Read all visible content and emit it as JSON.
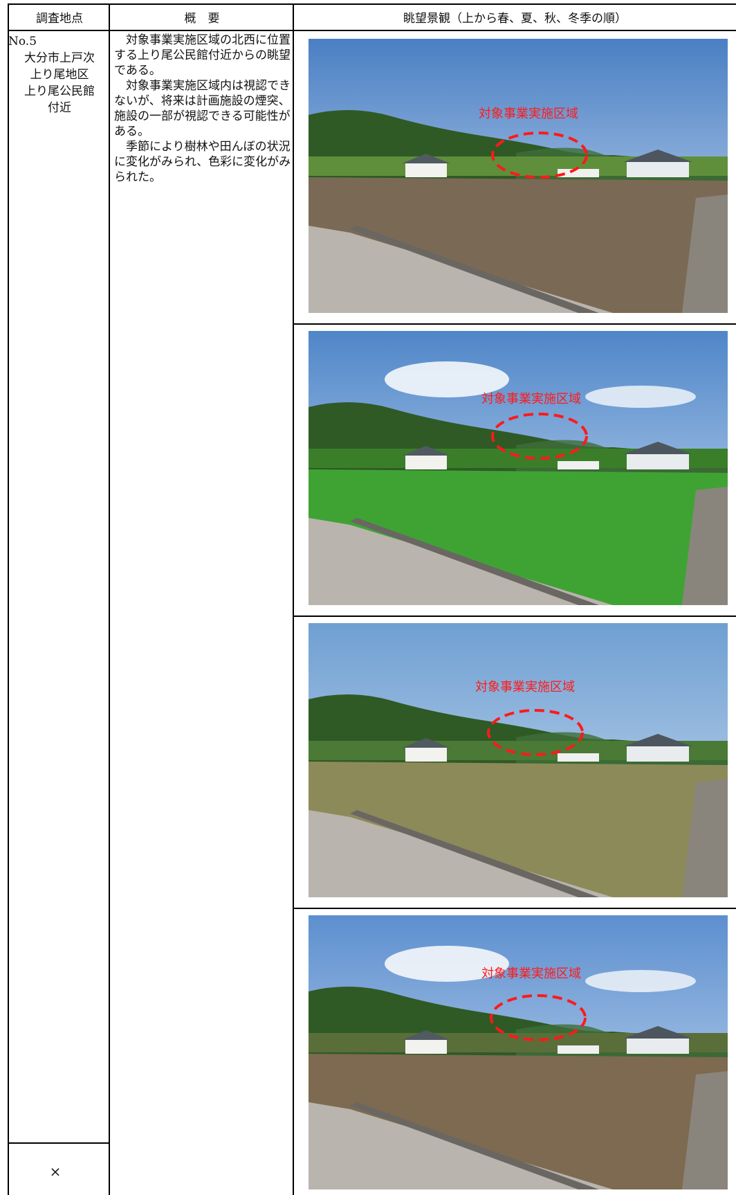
{
  "header": {
    "col1": "調査地点",
    "col2": "概　要",
    "col3": "眺望景観（上から春、夏、秋、冬季の順）"
  },
  "location": {
    "number": "No.5",
    "line1": "大分市上戸次",
    "line2": "上り尾地区",
    "line3": "上り尾公民館",
    "line4": "付近"
  },
  "summary": {
    "p1": "対象事業実施区域の北西に位置する上り尾公民館付近からの眺望である。",
    "p2": "対象事業実施区域内は視認できないが、将来は計画施設の煙突、施設の一部が視認できる可能性がある。",
    "p3": "季節により樹林や田んぼの状況に変化がみられ、色彩に変化がみられた。"
  },
  "photos": [
    {
      "season": "spring",
      "label": "対象事業実施区域",
      "colors": {
        "sky": "#4a7fc4",
        "field": "#7a6a55",
        "band": "#5f8f3a"
      }
    },
    {
      "season": "summer",
      "label": "対象事業実施区域",
      "colors": {
        "sky": "#4f86c9",
        "field": "#3fa334",
        "band": "#3a7e2a"
      }
    },
    {
      "season": "autumn",
      "label": "対象事業実施区域",
      "colors": {
        "sky": "#6f9fd2",
        "field": "#8d8a5a",
        "band": "#4a7a35"
      }
    },
    {
      "season": "winter",
      "label": "対象事業実施区域",
      "colors": {
        "sky": "#5d8fcf",
        "field": "#7d6a50",
        "band": "#5a6e3a"
      }
    }
  ],
  "footer_mark": "×"
}
